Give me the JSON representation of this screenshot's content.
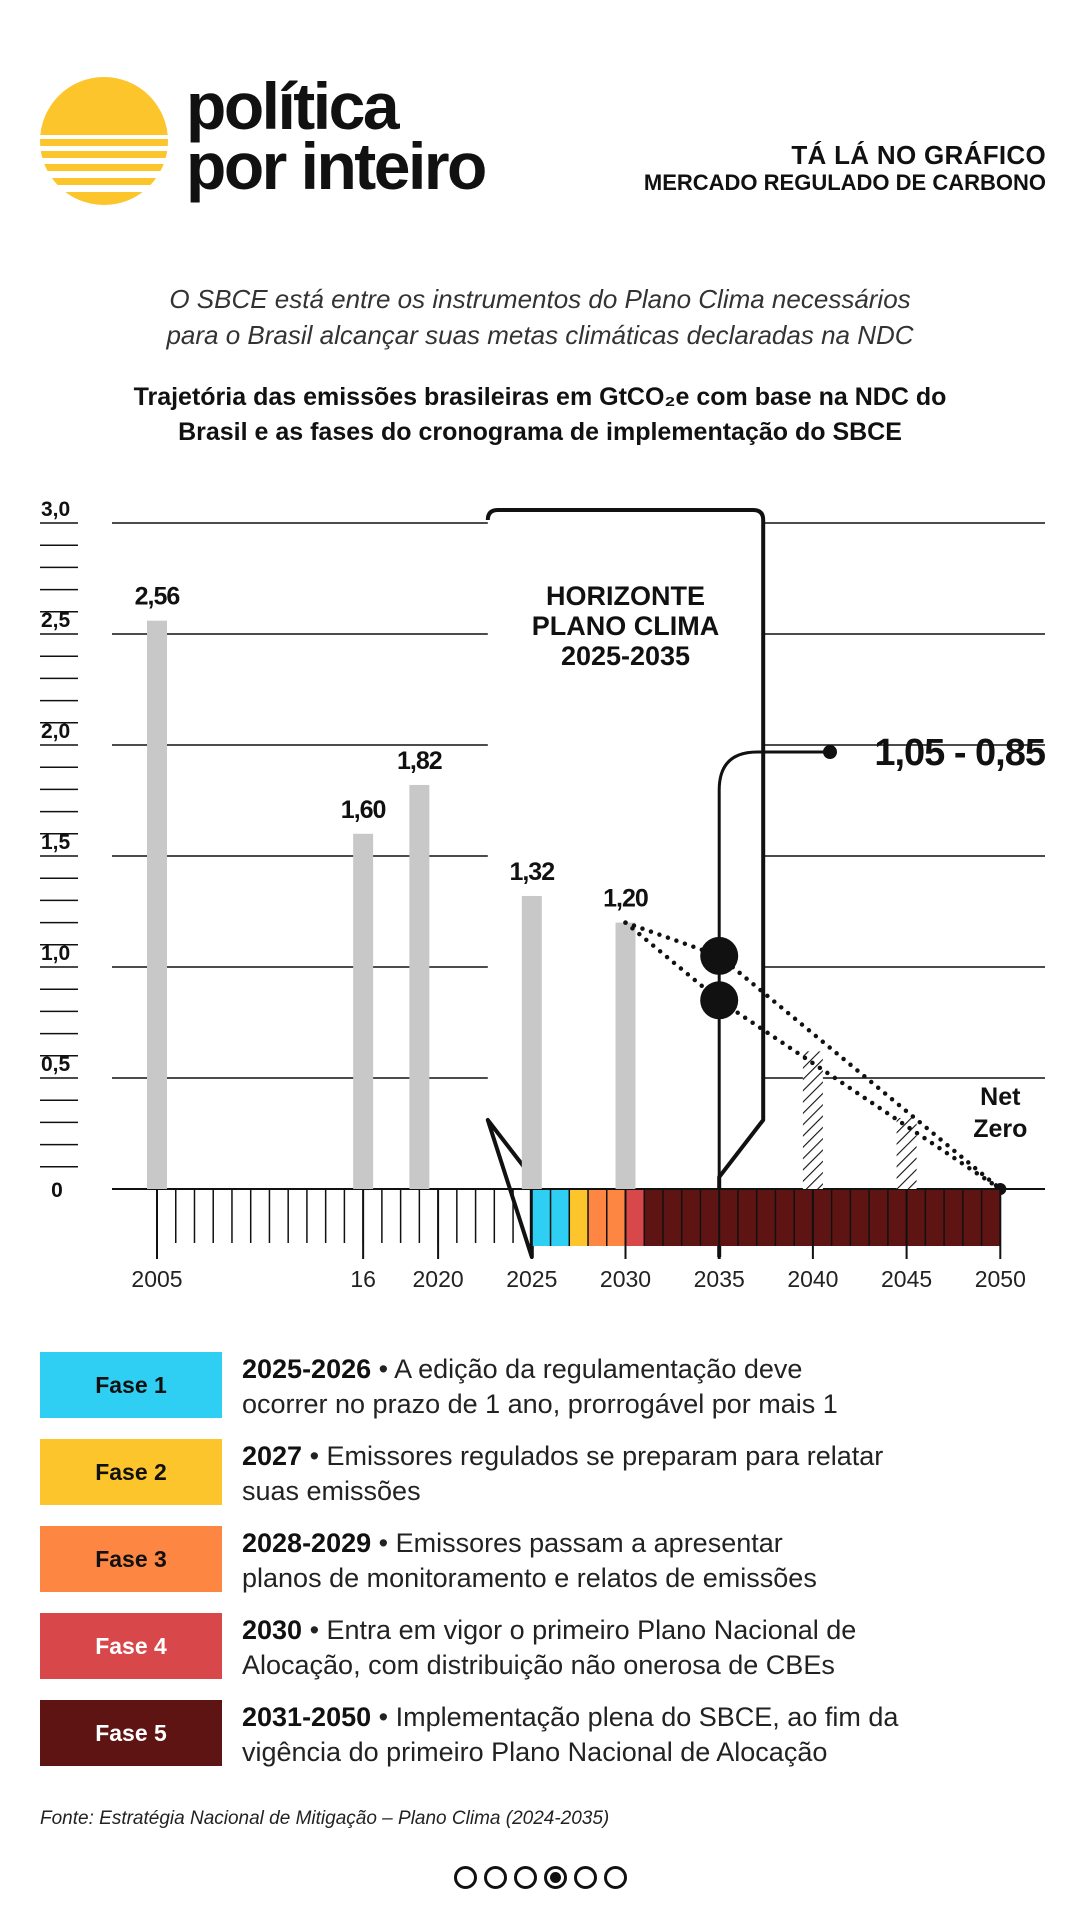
{
  "brand": {
    "line1": "política",
    "line2": "por inteiro"
  },
  "series": {
    "title": "TÁ LÁ NO GRÁFICO",
    "subtitle": "MERCADO REGULADO DE CARBONO"
  },
  "intro": {
    "line1": "O SBCE está entre os instrumentos do Plano Clima necessários",
    "line2": "para o Brasil alcançar suas metas climáticas declaradas na NDC"
  },
  "chart_title": {
    "line1": "Trajetória das emissões brasileiras em GtCO₂e com base na NDC do",
    "line2": "Brasil e as fases do cronograma de implementação do SBCE"
  },
  "chart_data": {
    "type": "bar",
    "ylim": [
      0,
      3.0
    ],
    "xlim": [
      2005,
      2050
    ],
    "y_ticks": [
      "0",
      "0,5",
      "1,0",
      "1,5",
      "2,0",
      "2,5",
      "3,0"
    ],
    "x_tick_labels": [
      {
        "year": 2005,
        "label": "2005"
      },
      {
        "year": 2016,
        "label": "16"
      },
      {
        "year": 2020,
        "label": "2020"
      },
      {
        "year": 2025,
        "label": "2025"
      },
      {
        "year": 2030,
        "label": "2030"
      },
      {
        "year": 2035,
        "label": "2035"
      },
      {
        "year": 2040,
        "label": "2040"
      },
      {
        "year": 2045,
        "label": "2045"
      },
      {
        "year": 2050,
        "label": "2050"
      }
    ],
    "bars": [
      {
        "year": 2005,
        "value": 2.56,
        "label": "2,56"
      },
      {
        "year": 2016,
        "value": 1.6,
        "label": "1,60"
      },
      {
        "year": 2019,
        "value": 1.82,
        "label": "1,82"
      },
      {
        "year": 2025,
        "value": 1.32,
        "label": "1,32"
      },
      {
        "year": 2030,
        "value": 1.2,
        "label": "1,20"
      }
    ],
    "hatched_bars": [
      {
        "year": 2040,
        "value": 0.62
      },
      {
        "year": 2045,
        "value": 0.32
      }
    ],
    "trajectories": [
      {
        "points": [
          [
            2030,
            1.2
          ],
          [
            2035,
            1.05
          ],
          [
            2050,
            0
          ]
        ]
      },
      {
        "points": [
          [
            2030,
            1.2
          ],
          [
            2035,
            0.85
          ],
          [
            2050,
            0
          ]
        ]
      }
    ],
    "targets": [
      {
        "year": 2035,
        "value": 1.05
      },
      {
        "year": 2035,
        "value": 0.85
      }
    ],
    "target_label": "1,05 - 0,85",
    "net_zero": {
      "year": 2050,
      "value": 0,
      "line1": "Net",
      "line2": "Zero"
    },
    "horizon": {
      "start": 2025,
      "end": 2035,
      "line1": "HORIZONTE",
      "line2": "PLANO CLIMA",
      "line3": "2025-2035"
    },
    "phase_strip": [
      {
        "start": 2025,
        "end": 2027,
        "color": "#2ECFF2"
      },
      {
        "start": 2027,
        "end": 2028,
        "color": "#FCC52B"
      },
      {
        "start": 2028,
        "end": 2030,
        "color": "#FE8643"
      },
      {
        "start": 2030,
        "end": 2031,
        "color": "#D8484A"
      },
      {
        "start": 2031,
        "end": 2050,
        "color": "#5E1412"
      }
    ]
  },
  "phases": [
    {
      "name": "Fase 1",
      "color": "#2ECFF2",
      "text_color": "#111111",
      "years": "2025-2026",
      "line1": " • A edição da regulamentação deve",
      "line2": "ocorrer no prazo de 1 ano, prorrogável por mais 1"
    },
    {
      "name": "Fase 2",
      "color": "#FCC52B",
      "text_color": "#111111",
      "years": "2027",
      "line1": " • Emissores regulados se preparam para relatar",
      "line2": "suas emissões"
    },
    {
      "name": "Fase 3",
      "color": "#FE8643",
      "text_color": "#111111",
      "years": "2028-2029",
      "line1": " • Emissores passam a apresentar",
      "line2": "planos de monitoramento e relatos de emissões"
    },
    {
      "name": "Fase 4",
      "color": "#D8484A",
      "text_color": "#ffffff",
      "years": "2030",
      "line1": " • Entra em vigor o primeiro Plano Nacional de",
      "line2": "Alocação, com distribuição não onerosa de CBEs"
    },
    {
      "name": "Fase 5",
      "color": "#5E1412",
      "text_color": "#ffffff",
      "years": "2031-2050",
      "line1": " • Implementação plena do SBCE, ao fim da",
      "line2": "vigência do primeiro Plano Nacional de Alocação"
    }
  ],
  "source": "Fonte: Estratégia Nacional de Mitigação – Plano Clima (2024-2035)",
  "pagination": {
    "total": 6,
    "active": 4
  },
  "colors": {
    "logo": "#FCC52B",
    "bar": "#C8C8C8",
    "text": "#111111"
  }
}
